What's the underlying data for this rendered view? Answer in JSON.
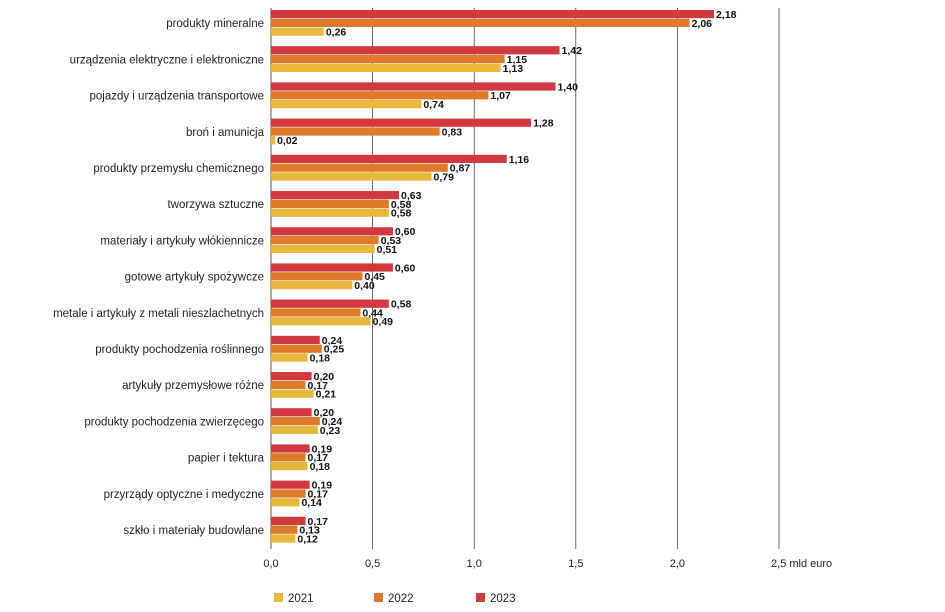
{
  "chart_data": {
    "type": "bar",
    "orientation": "horizontal",
    "categories": [
      "produkty mineralne",
      "urządzenia elektryczne i elektroniczne",
      "pojazdy i  urządzenia transportowe",
      "broń i amunicja",
      "produkty przemysłu chemicznego",
      "tworzywa sztuczne",
      "materiały i artykuły włókiennicze",
      "gotowe artykuły spożywcze",
      "metale i artykuły z metali nieszlachetnych",
      "produkty pochodzenia roślinnego",
      "artykuły przemysłowe różne",
      "produkty pochodzenia zwierzęcego",
      "papier i tektura",
      "przyrządy optyczne i medyczne",
      "szkło i materiały budowlane"
    ],
    "series": [
      {
        "name": "2023",
        "color": "#d2393f",
        "values": [
          2.18,
          1.42,
          1.4,
          1.28,
          1.16,
          0.63,
          0.6,
          0.6,
          0.58,
          0.24,
          0.2,
          0.2,
          0.19,
          0.19,
          0.17
        ],
        "labels": [
          "2,18",
          "1,42",
          "1,40",
          "1,28",
          "1,16",
          "0,63",
          "0,60",
          "0,60",
          "0,58",
          "0,24",
          "0,20",
          "0,20",
          "0,19",
          "0,19",
          "0,17"
        ]
      },
      {
        "name": "2022",
        "color": "#de7a2a",
        "values": [
          2.06,
          1.15,
          1.07,
          0.83,
          0.87,
          0.58,
          0.53,
          0.45,
          0.44,
          0.25,
          0.17,
          0.24,
          0.17,
          0.17,
          0.13
        ],
        "labels": [
          "2,06",
          "1,15",
          "1,07",
          "0,83",
          "0,87",
          "0,58",
          "0,53",
          "0,45",
          "0,44",
          "0,25",
          "0,17",
          "0,24",
          "0,17",
          "0,17",
          "0,13"
        ]
      },
      {
        "name": "2021",
        "color": "#e8b83b",
        "values": [
          0.26,
          1.13,
          0.74,
          0.02,
          0.79,
          0.58,
          0.51,
          0.4,
          0.49,
          0.18,
          0.21,
          0.23,
          0.18,
          0.14,
          0.12
        ],
        "labels": [
          "0,26",
          "1,13",
          "0,74",
          "0,02",
          "0,79",
          "0,58",
          "0,51",
          "0,40",
          "0,49",
          "0,18",
          "0,21",
          "0,23",
          "0,18",
          "0,14",
          "0,12"
        ]
      }
    ],
    "xlim": [
      0,
      2.5
    ],
    "x_ticks": [
      0,
      0.5,
      1.0,
      1.5,
      2.0,
      2.5
    ],
    "x_tick_labels": [
      "0,0",
      "0,5",
      "1,0",
      "1,5",
      "2,0",
      "2,5"
    ],
    "x_unit": "mld euro",
    "grid": "vertical",
    "title": "",
    "xlabel": "",
    "ylabel": ""
  },
  "legend": {
    "placement": "bottom",
    "items": [
      {
        "label": "2021",
        "color": "#e8b83b"
      },
      {
        "label": "2022",
        "color": "#de7a2a"
      },
      {
        "label": "2023",
        "color": "#d2393f"
      }
    ]
  }
}
